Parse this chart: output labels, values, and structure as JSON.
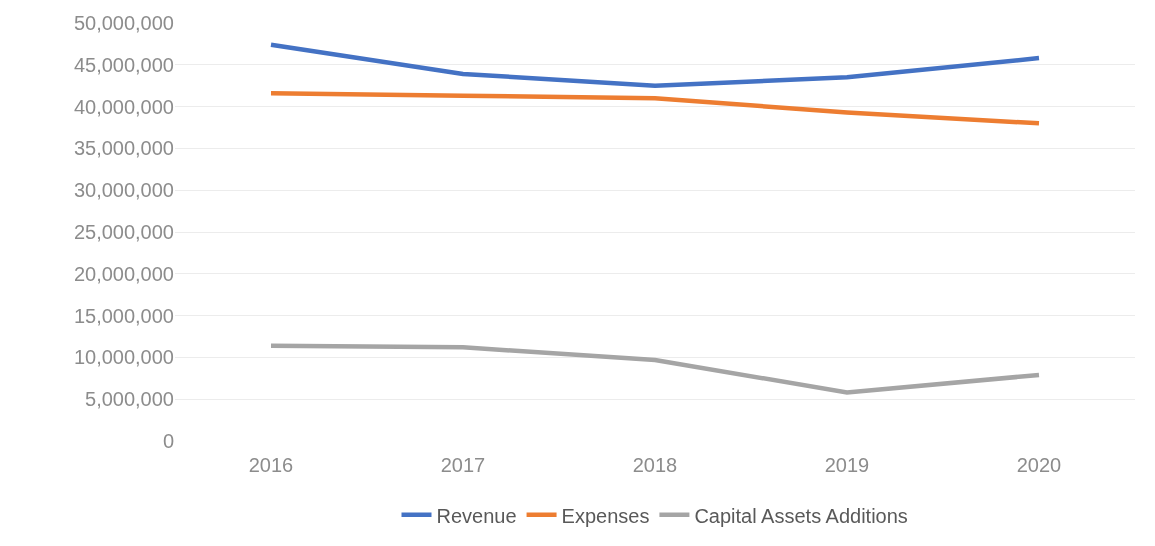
{
  "chart_data": {
    "type": "line",
    "categories": [
      "2016",
      "2017",
      "2018",
      "2019",
      "2020"
    ],
    "series": [
      {
        "name": "Revenue",
        "color": "#4472c4",
        "values": [
          47400000,
          43900000,
          42500000,
          43500000,
          45800000
        ]
      },
      {
        "name": "Expenses",
        "color": "#ed7d31",
        "values": [
          41600000,
          41300000,
          41000000,
          39300000,
          38000000
        ]
      },
      {
        "name": "Capital Assets Additions",
        "color": "#a5a5a5",
        "values": [
          11400000,
          11200000,
          9700000,
          5800000,
          7900000
        ]
      }
    ],
    "ylim": [
      0,
      50000000
    ],
    "yticks": [
      0,
      {
        "value": 5000000,
        "label": "5,000,000"
      },
      {
        "value": 10000000,
        "label": "10,000,000"
      },
      {
        "value": 15000000,
        "label": "15,000,000"
      },
      {
        "value": 20000000,
        "label": "20,000,000"
      },
      {
        "value": 25000000,
        "label": "25,000,000"
      },
      {
        "value": 30000000,
        "label": "30,000,000"
      },
      {
        "value": 35000000,
        "label": "35,000,000"
      },
      {
        "value": 40000000,
        "label": "40,000,000"
      },
      {
        "value": 45000000,
        "label": "45,000,000"
      },
      {
        "value": 50000000,
        "label": "50,000,000"
      }
    ],
    "grid": "y",
    "legend": "bottom",
    "marker": "none",
    "line_style": "solid"
  }
}
